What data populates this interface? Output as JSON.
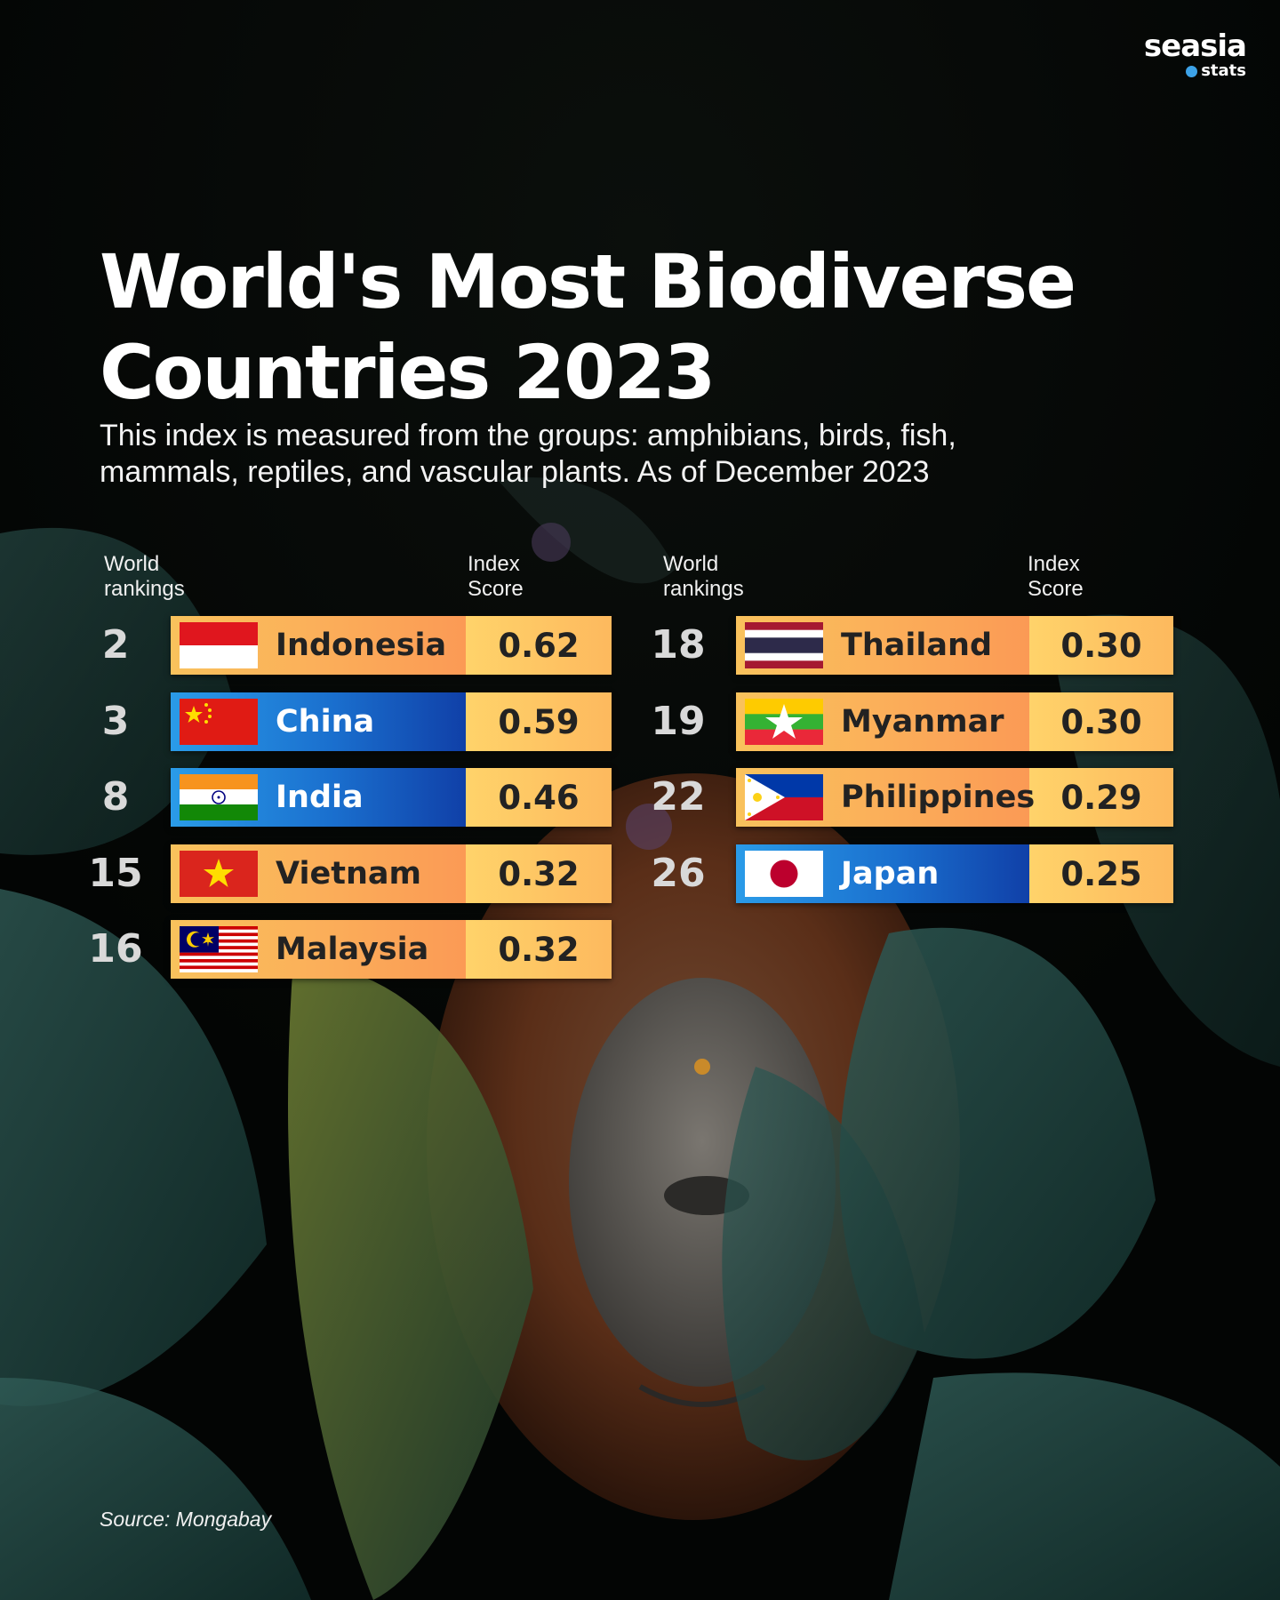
{
  "brand": {
    "name": "seasia",
    "sub": "stats"
  },
  "title_line1": "World's Most Biodiverse",
  "title_line2": "Countries 2023",
  "subtitle_line1": "This index is measured from the groups: amphibians, birds, fish,",
  "subtitle_line2": "mammals, reptiles, and vascular plants. As of December 2023",
  "headers": {
    "rank_line1": "World",
    "rank_line2": "rankings",
    "score_line1": "Index",
    "score_line2": "Score"
  },
  "source": "Source: Mongabay",
  "colors": {
    "orange": "#fba957",
    "blue": "#1a6fce",
    "score": "#ffc663"
  },
  "chart_data": {
    "type": "table",
    "title": "World's Most Biodiverse Countries 2023",
    "columns": [
      "World rankings",
      "Country",
      "Index Score"
    ],
    "rows": [
      {
        "rank": "2",
        "country": "Indonesia",
        "score": "0.62",
        "style": "orange",
        "flag": "indonesia-flag"
      },
      {
        "rank": "3",
        "country": "China",
        "score": "0.59",
        "style": "blue",
        "flag": "china-flag"
      },
      {
        "rank": "8",
        "country": "India",
        "score": "0.46",
        "style": "blue",
        "flag": "india-flag"
      },
      {
        "rank": "15",
        "country": "Vietnam",
        "score": "0.32",
        "style": "orange",
        "flag": "vietnam-flag"
      },
      {
        "rank": "16",
        "country": "Malaysia",
        "score": "0.32",
        "style": "orange",
        "flag": "malaysia-flag"
      },
      {
        "rank": "18",
        "country": "Thailand",
        "score": "0.30",
        "style": "orange",
        "flag": "thailand-flag"
      },
      {
        "rank": "19",
        "country": "Myanmar",
        "score": "0.30",
        "style": "orange",
        "flag": "myanmar-flag"
      },
      {
        "rank": "22",
        "country": "Philippines",
        "score": "0.29",
        "style": "orange",
        "flag": "philippines-flag"
      },
      {
        "rank": "26",
        "country": "Japan",
        "score": "0.25",
        "style": "blue",
        "flag": "japan-flag"
      }
    ]
  }
}
